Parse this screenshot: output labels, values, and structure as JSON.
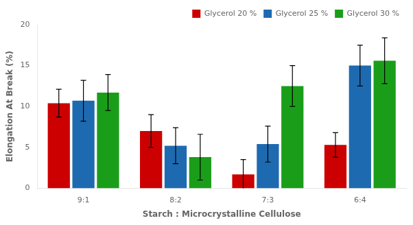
{
  "chart_data": {
    "type": "bar",
    "categories": [
      "9:1",
      "8:2",
      "7:3",
      "6:4"
    ],
    "series": [
      {
        "name": "Glycerol 20 %",
        "color": "#cc0000",
        "values": [
          10.4,
          7.0,
          1.7,
          5.3
        ],
        "errors": [
          1.7,
          2.0,
          1.8,
          1.5
        ]
      },
      {
        "name": "Glycerol 25 %",
        "color": "#1e6ab0",
        "values": [
          10.7,
          5.2,
          5.4,
          15.0
        ],
        "errors": [
          2.5,
          2.2,
          2.2,
          2.5
        ]
      },
      {
        "name": "Glycerol 30 %",
        "color": "#1a9e1a",
        "values": [
          11.7,
          3.8,
          12.5,
          15.6
        ],
        "errors": [
          2.2,
          2.8,
          2.5,
          2.8
        ]
      }
    ],
    "xlabel": "Starch : Microcrystalline Cellulose",
    "ylabel": "Elongation At Break (%)",
    "ylim": [
      0,
      20
    ],
    "yticks": [
      0,
      5,
      10,
      15,
      20
    ],
    "grid": false,
    "legend": "upper right"
  }
}
